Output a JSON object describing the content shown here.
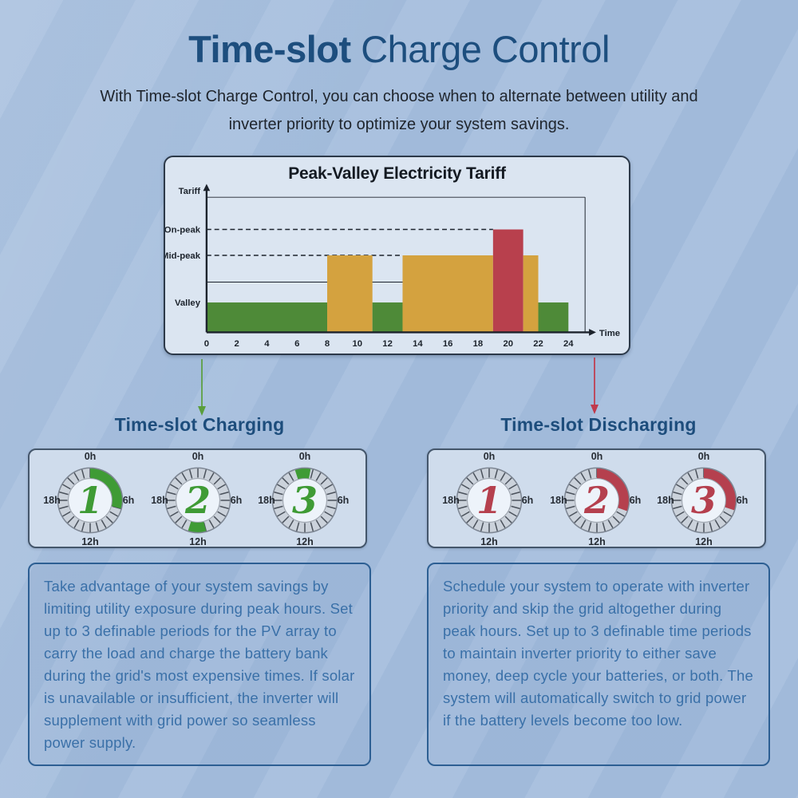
{
  "page": {
    "title_bold": "Time-slot",
    "title_rest": " Charge Control",
    "subtitle_line1": "With Time-slot Charge Control, you can choose when to alternate between utility and",
    "subtitle_line2": "inverter priority to optimize your system savings.",
    "colors": {
      "background": "#a5bedd",
      "title": "#1d4e7e",
      "heading": "#1d4d7c",
      "body_text": "#3a70a8",
      "box_border": "#2d5f93"
    }
  },
  "chart_data": {
    "type": "bar",
    "title": "Peak-Valley Electricity Tariff",
    "xlabel": "Time",
    "ylabel": "Tariff",
    "x_range": [
      0,
      24
    ],
    "x_ticks": [
      0,
      2,
      4,
      6,
      8,
      10,
      12,
      14,
      16,
      18,
      20,
      22,
      24
    ],
    "levels": [
      {
        "name": "On-peak",
        "value": 3,
        "color": "#b8404d"
      },
      {
        "name": "Mid-peak",
        "value": 2,
        "color": "#d4a23f"
      },
      {
        "name": "Valley",
        "value": 1,
        "color": "#4e8a38"
      }
    ],
    "segments": [
      {
        "from": 0,
        "to": 8,
        "level": "Valley"
      },
      {
        "from": 8,
        "to": 11,
        "level": "Mid-peak"
      },
      {
        "from": 11,
        "to": 13,
        "level": "Valley"
      },
      {
        "from": 13,
        "to": 19,
        "level": "Mid-peak"
      },
      {
        "from": 19,
        "to": 21,
        "level": "On-peak"
      },
      {
        "from": 21,
        "to": 22,
        "level": "Mid-peak"
      },
      {
        "from": 22,
        "to": 24,
        "level": "Valley"
      }
    ],
    "dashed_guides": [
      {
        "level": "On-peak",
        "from": 0,
        "to": 19
      },
      {
        "level": "Mid-peak",
        "from": 0,
        "to": 13
      }
    ],
    "solid_guide": {
      "from": 0,
      "to": 13
    },
    "grid": false,
    "legend": false
  },
  "charging": {
    "heading": "Time-slot Charging",
    "arrow_color": "#5a9e3c",
    "arc_color": "#3f9b35",
    "clock_labels": [
      "0h",
      "6h",
      "12h",
      "18h"
    ],
    "clocks": [
      {
        "number": "1",
        "arc": [
          0,
          7
        ]
      },
      {
        "number": "2",
        "arc": [
          11,
          13.2
        ]
      },
      {
        "number": "3",
        "arc": [
          22.8,
          0.7
        ]
      }
    ],
    "description": "Take advantage of your system savings by limiting utility exposure during peak hours. Set up to 3 definable periods for the PV array to carry the load and charge the battery bank during the grid's most expensive times. If solar is unavailable or insufficient, the inverter will supplement with grid power so seamless power supply."
  },
  "discharging": {
    "heading": "Time-slot Discharging",
    "arrow_color": "#c0394b",
    "arc_color": "#b5404e",
    "clock_labels": [
      "0h",
      "6h",
      "12h",
      "18h"
    ],
    "clocks": [
      {
        "number": "1",
        "arc": null
      },
      {
        "number": "2",
        "arc": [
          0,
          7.3
        ]
      },
      {
        "number": "3",
        "arc": [
          0,
          7.2
        ]
      }
    ],
    "description": "Schedule your system to operate with inverter priority and skip the grid altogether during peak hours. Set up to 3 definable time periods to maintain inverter priority to either save money, deep cycle your batteries, or both. The system will automatically switch to grid power if the battery levels become too low."
  }
}
